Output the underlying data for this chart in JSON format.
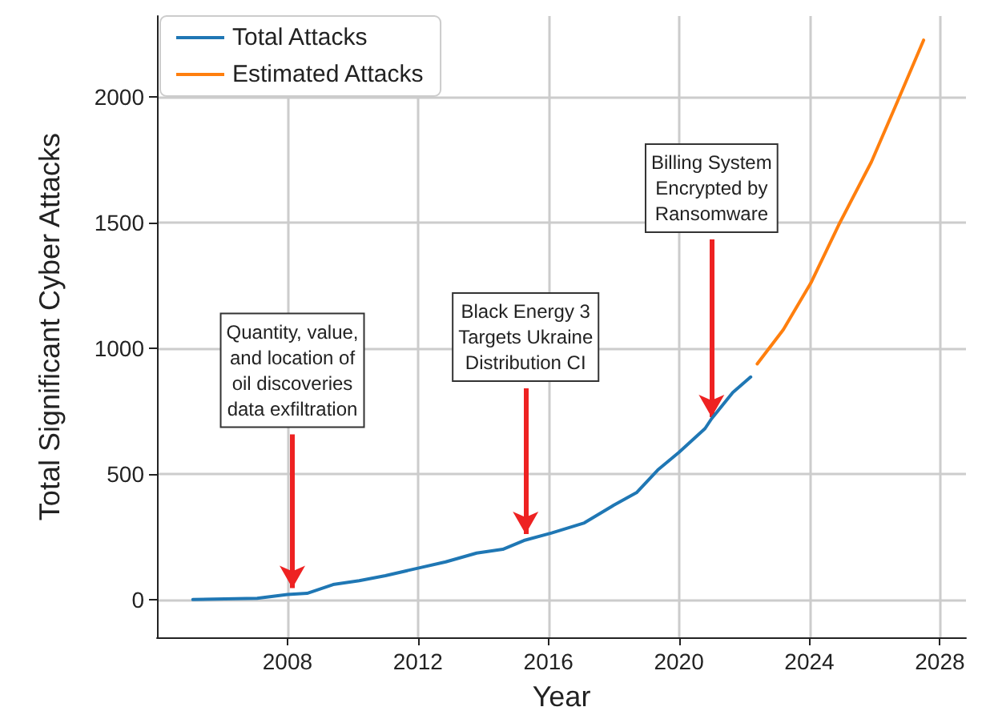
{
  "chart_data": {
    "type": "line",
    "xlabel": "Year",
    "ylabel": "Total Significant Cyber Attacks",
    "xlim": [
      2004,
      2028.8
    ],
    "xticks": [
      2008,
      2012,
      2016,
      2020,
      2024,
      2028
    ],
    "ylim": [
      -150,
      2320
    ],
    "yticks": [
      0,
      500,
      1000,
      1500,
      2000
    ],
    "grid": true,
    "legend": "top left",
    "marker": "none",
    "line_style": "solid",
    "series": [
      {
        "name": "Total Attacks",
        "color": "#1f77b4",
        "x": [
          2005.1,
          2007.07,
          2008.0,
          2008.6,
          2009.4,
          2010.2,
          2011.0,
          2012.0,
          2012.85,
          2013.8,
          2014.6,
          2015.25,
          2016.1,
          2017.1,
          2018.0,
          2018.7,
          2019.35,
          2020.0,
          2020.8,
          2021.0,
          2021.65,
          2022.2
        ],
        "values": [
          0,
          5,
          20,
          25,
          60,
          75,
          95,
          125,
          150,
          185,
          200,
          235,
          265,
          305,
          375,
          425,
          515,
          585,
          680,
          719,
          823,
          885
        ]
      },
      {
        "name": "Estimated Attacks",
        "color": "#ff7f0e",
        "x": [
          2022.4,
          2023.2,
          2024.05,
          2024.9,
          2025.9,
          2026.7,
          2027.5
        ],
        "values": [
          937,
          1073,
          1260,
          1490,
          1740,
          1980,
          2224
        ]
      }
    ],
    "annotations": [
      {
        "text": "Quantity, value,\nand location of\noil discoveries\ndata exfiltration",
        "x": 2008.15,
        "y": 20
      },
      {
        "text": "Black Energy 3\nTargets Ukraine\nDistribution CI",
        "x": 2015.3,
        "y": 235
      },
      {
        "text": "Billing System\nEncrypted by\nRansomware",
        "x": 2021.0,
        "y": 700
      }
    ]
  }
}
